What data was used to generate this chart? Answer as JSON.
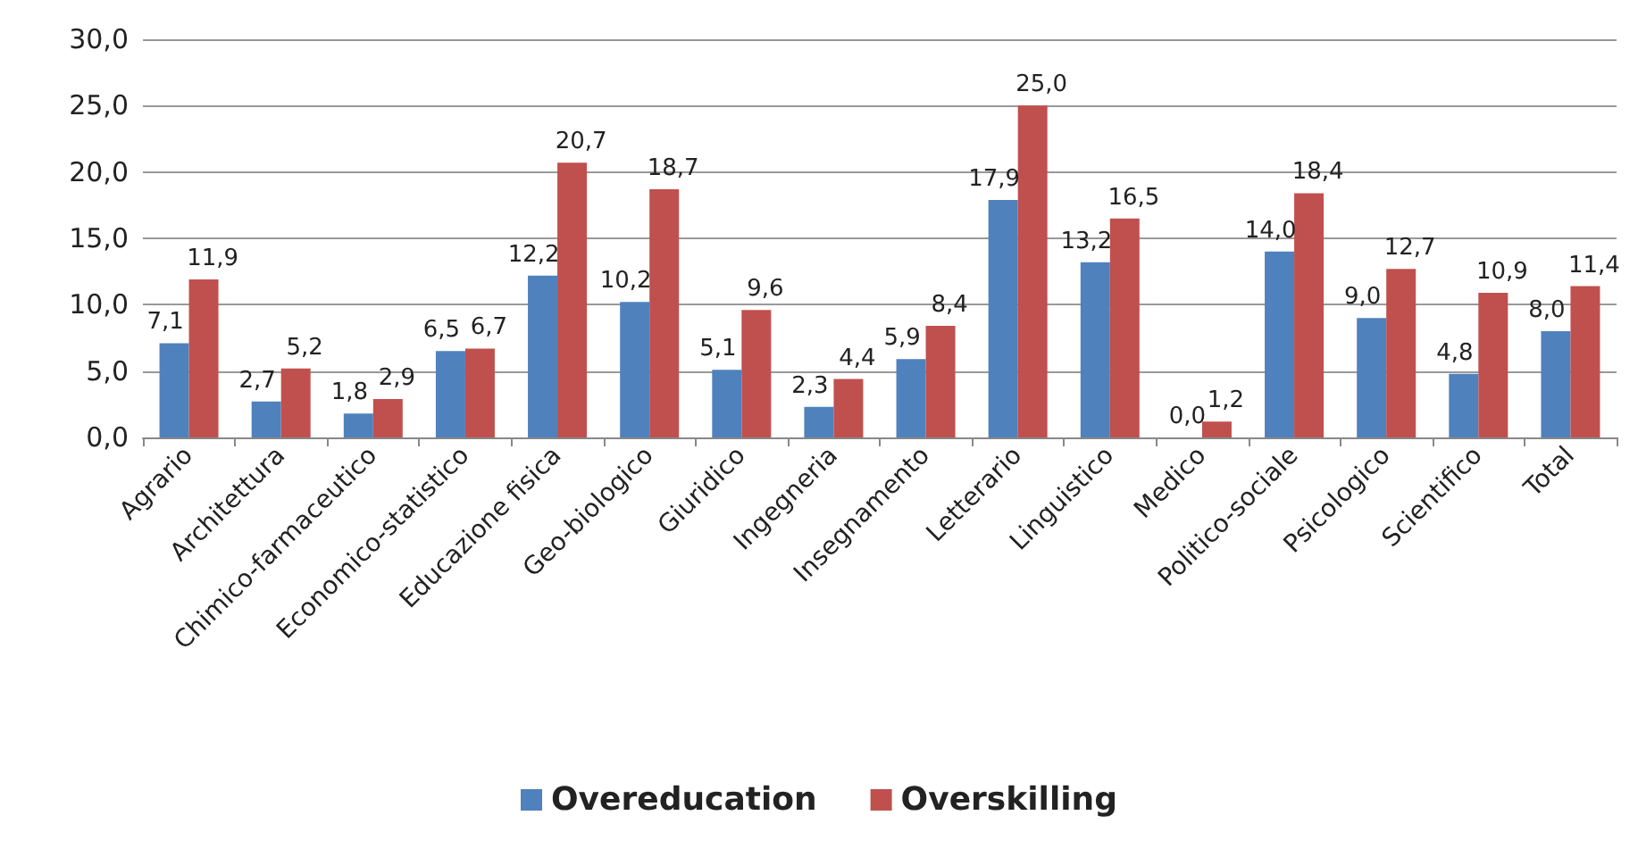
{
  "chart_data": {
    "type": "bar",
    "categories": [
      "Agrario",
      "Architettura",
      "Chimico-farmaceutico",
      "Economico-statistico",
      "Educazione fisica",
      "Geo-biologico",
      "Giuridico",
      "Ingegneria",
      "Insegnamento",
      "Letterario",
      "Linguistico",
      "Medico",
      "Politico-sociale",
      "Psicologico",
      "Scientifico",
      "Total"
    ],
    "series": [
      {
        "name": "Overeducation",
        "color": "#4f81bd",
        "values": [
          7.1,
          2.7,
          1.8,
          6.5,
          12.2,
          10.2,
          5.1,
          2.3,
          5.9,
          17.9,
          13.2,
          0.0,
          14.0,
          9.0,
          4.8,
          8.0
        ],
        "value_labels": [
          "7,1",
          "2,7",
          "1,8",
          "6,5",
          "12,2",
          "10,2",
          "5,1",
          "2,3",
          "5,9",
          "17,9",
          "13,2",
          "0,0",
          "14,0",
          "9,0",
          "4,8",
          "8,0"
        ]
      },
      {
        "name": "Overskilling",
        "color": "#c0504d",
        "values": [
          11.9,
          5.2,
          2.9,
          6.7,
          20.7,
          18.7,
          9.6,
          4.4,
          8.4,
          25.0,
          16.5,
          1.2,
          18.4,
          12.7,
          10.9,
          11.4
        ],
        "value_labels": [
          "11,9",
          "5,2",
          "2,9",
          "6,7",
          "20,7",
          "18,7",
          "9,6",
          "4,4",
          "8,4",
          "25,0",
          "16,5",
          "1,2",
          "18,4",
          "12,7",
          "10,9",
          "11,4"
        ]
      }
    ],
    "ylim": [
      0,
      30
    ],
    "yticks": [
      {
        "value": 0,
        "label": "0,0"
      },
      {
        "value": 5,
        "label": "5,0"
      },
      {
        "value": 10,
        "label": "10,0"
      },
      {
        "value": 15,
        "label": "15,0"
      },
      {
        "value": 20,
        "label": "20,0"
      },
      {
        "value": 25,
        "label": "25,0"
      },
      {
        "value": 30,
        "label": "30,0"
      }
    ],
    "grid": "y",
    "legend": "bottom"
  }
}
